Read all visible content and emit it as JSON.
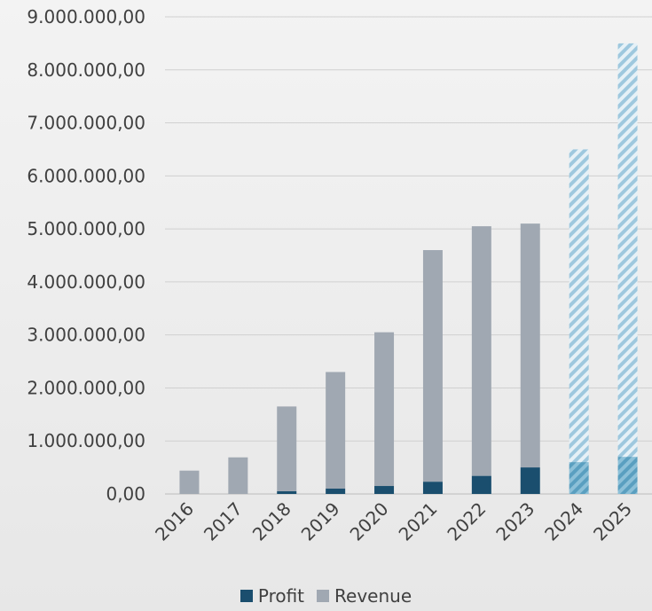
{
  "chart_data": {
    "type": "bar",
    "stacked": true,
    "categories": [
      "2016",
      "2017",
      "2018",
      "2019",
      "2020",
      "2021",
      "2022",
      "2023",
      "2024",
      "2025"
    ],
    "series": [
      {
        "name": "Profit",
        "color": "#1a4e6e",
        "values": [
          0,
          0,
          50000,
          100000,
          150000,
          230000,
          340000,
          500000,
          600000,
          700000
        ]
      },
      {
        "name": "Revenue",
        "color": "#a0a8b2",
        "values": [
          440000,
          690000,
          1600000,
          2200000,
          2900000,
          4370000,
          4710000,
          4600000,
          5900000,
          7800000
        ]
      }
    ],
    "forecast_categories": [
      "2024",
      "2025"
    ],
    "forecast_style": "diagonal hatched, light blue",
    "forecast_colors": {
      "profit": "#6aaccb",
      "revenue": "#b8d6e6"
    },
    "ylim": [
      0,
      9000000
    ],
    "y_ticks": [
      "0,00",
      "1.000.000,00",
      "2.000.000,00",
      "3.000.000,00",
      "4.000.000,00",
      "5.000.000,00",
      "6.000.000,00",
      "7.000.000,00",
      "8.000.000,00",
      "9.000.000,00"
    ],
    "grid": true,
    "legend_position": "bottom"
  }
}
